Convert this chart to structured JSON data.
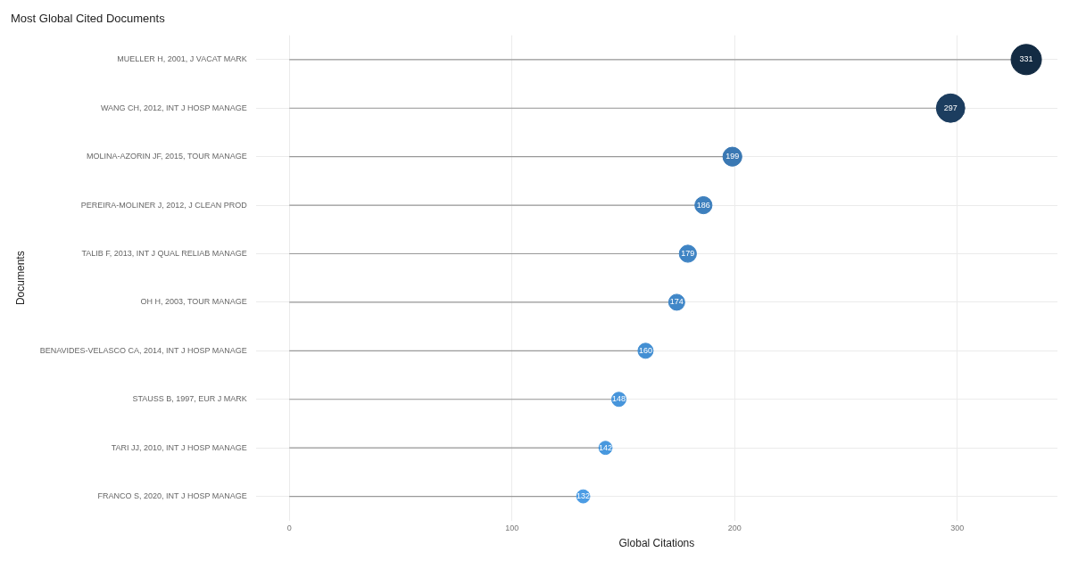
{
  "chart_data": {
    "type": "lollipop",
    "title": "Most Global Cited Documents",
    "xlabel": "Global Citations",
    "ylabel": "Documents",
    "orientation": "horizontal",
    "categories": [
      "MUELLER H, 2001, J VACAT MARK",
      "WANG CH, 2012, INT J HOSP MANAGE",
      "MOLINA-AZORIN JF, 2015, TOUR MANAGE",
      "PEREIRA-MOLINER J, 2012, J CLEAN PROD",
      "TALIB F, 2013, INT J QUAL RELIAB MANAGE",
      "OH H, 2003, TOUR MANAGE",
      "BENAVIDES-VELASCO CA, 2014, INT J HOSP MANAGE",
      "STAUSS B, 1997, EUR J MARK",
      "TARI JJ, 2010, INT J HOSP MANAGE",
      "FRANCO S, 2020, INT J HOSP MANAGE"
    ],
    "values": [
      331,
      297,
      199,
      186,
      179,
      174,
      160,
      148,
      142,
      132
    ],
    "sizes": [
      1,
      0.88,
      0.39,
      0.32,
      0.32,
      0.28,
      0.25,
      0.22,
      0.19,
      0.19
    ],
    "colors": [
      "#132b43",
      "#1c3d5f",
      "#3a78b3",
      "#3d7fbd",
      "#3f84c4",
      "#4087c8",
      "#438fd3",
      "#4795db",
      "#4898de",
      "#4b9ce4"
    ],
    "data_labels": true,
    "xlim": [
      -15,
      345
    ],
    "xticks": [
      0,
      100,
      200,
      300
    ],
    "grid": true,
    "legend": false
  }
}
